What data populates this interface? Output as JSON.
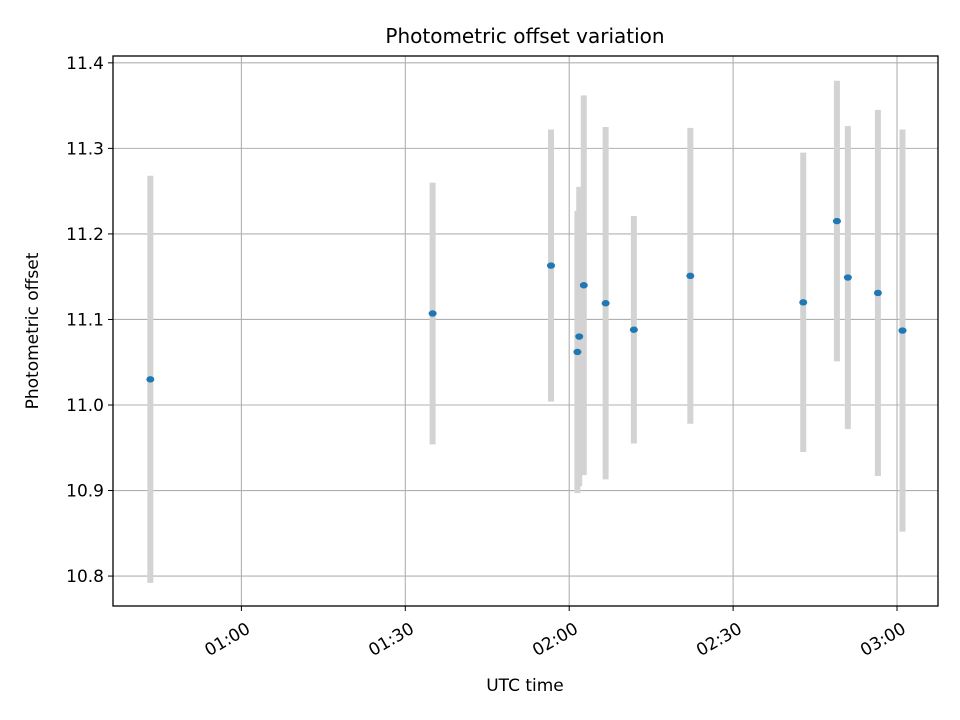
{
  "chart_data": {
    "type": "scatter",
    "title": "Photometric offset variation",
    "xlabel": "UTC time",
    "ylabel": "Photometric offset",
    "x_tick_labels": [
      "01:00",
      "01:30",
      "02:00",
      "02:30",
      "03:00"
    ],
    "x_ticks": [
      "01:00",
      "01:30",
      "02:00",
      "02:30",
      "03:00"
    ],
    "y_ticks": [
      10.8,
      10.9,
      11.0,
      11.1,
      11.2,
      11.3,
      11.4
    ],
    "y_tick_labels": [
      "10.8",
      "10.9",
      "11.0",
      "11.1",
      "11.2",
      "11.3",
      "11.4"
    ],
    "xlim": [
      "00:36:30",
      "03:07:30"
    ],
    "ylim": [
      10.765,
      11.408
    ],
    "grid": true,
    "point_color": "#1f77b4",
    "errorbar_color": "#d3d3d3",
    "series": [
      {
        "points": [
          {
            "x": "00:43:20",
            "y": 11.03,
            "yerr": 0.238
          },
          {
            "x": "01:35:00",
            "y": 11.107,
            "yerr": 0.153
          },
          {
            "x": "01:56:40",
            "y": 11.163,
            "yerr": 0.159
          },
          {
            "x": "02:01:30",
            "y": 11.062,
            "yerr": 0.165
          },
          {
            "x": "02:01:50",
            "y": 11.08,
            "yerr": 0.175
          },
          {
            "x": "02:02:40",
            "y": 11.14,
            "yerr": 0.222
          },
          {
            "x": "02:06:40",
            "y": 11.119,
            "yerr": 0.206
          },
          {
            "x": "02:11:50",
            "y": 11.088,
            "yerr": 0.133
          },
          {
            "x": "02:22:10",
            "y": 11.151,
            "yerr": 0.173
          },
          {
            "x": "02:42:50",
            "y": 11.12,
            "yerr": 0.175
          },
          {
            "x": "02:49:00",
            "y": 11.215,
            "yerr": 0.164
          },
          {
            "x": "02:51:00",
            "y": 11.149,
            "yerr": 0.177
          },
          {
            "x": "02:56:30",
            "y": 11.131,
            "yerr": 0.214
          },
          {
            "x": "03:01:00",
            "y": 11.087,
            "yerr": 0.235
          }
        ]
      }
    ]
  }
}
